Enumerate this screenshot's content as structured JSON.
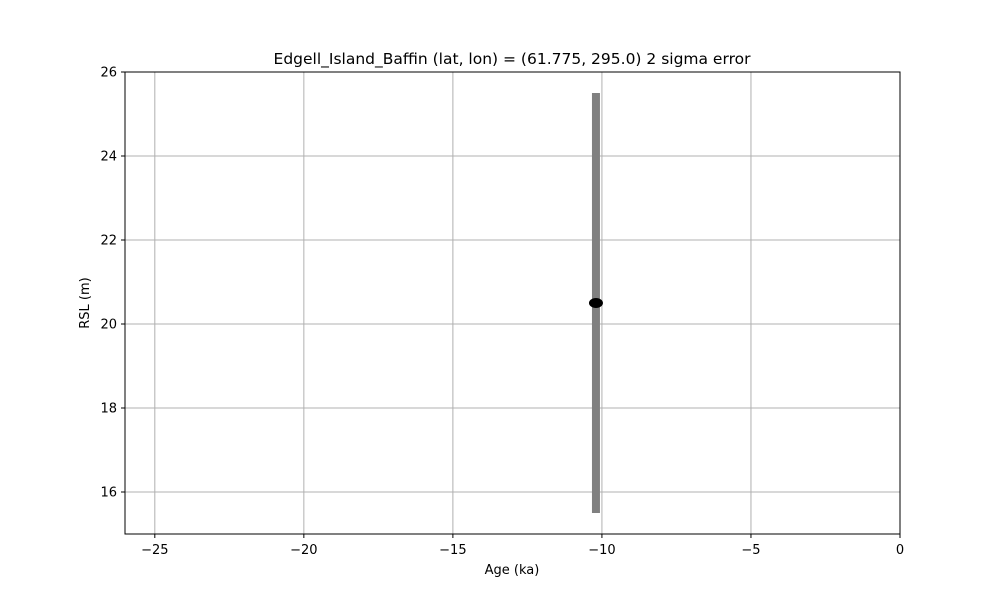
{
  "chart_data": {
    "type": "scatter",
    "title": "Edgell_Island_Baffin (lat, lon) = (61.775, 295.0)  2 sigma error",
    "xlabel": "Age (ka)",
    "ylabel": "RSL (m)",
    "xlim": [
      -26,
      0
    ],
    "ylim": [
      15,
      26
    ],
    "xticks": [
      -25,
      -20,
      -15,
      -10,
      -5,
      0
    ],
    "xtick_labels": [
      "−25",
      "−20",
      "−15",
      "−10",
      "−5",
      "0"
    ],
    "yticks": [
      16,
      18,
      20,
      22,
      24,
      26
    ],
    "ytick_labels": [
      "16",
      "18",
      "20",
      "22",
      "24",
      "26"
    ],
    "grid": true,
    "points": [
      {
        "x": -10.2,
        "y": 20.5,
        "yerr": 5.0
      }
    ],
    "colors": {
      "marker": "#000000",
      "errorbar": "#808080",
      "grid": "#b0b0b0"
    }
  }
}
